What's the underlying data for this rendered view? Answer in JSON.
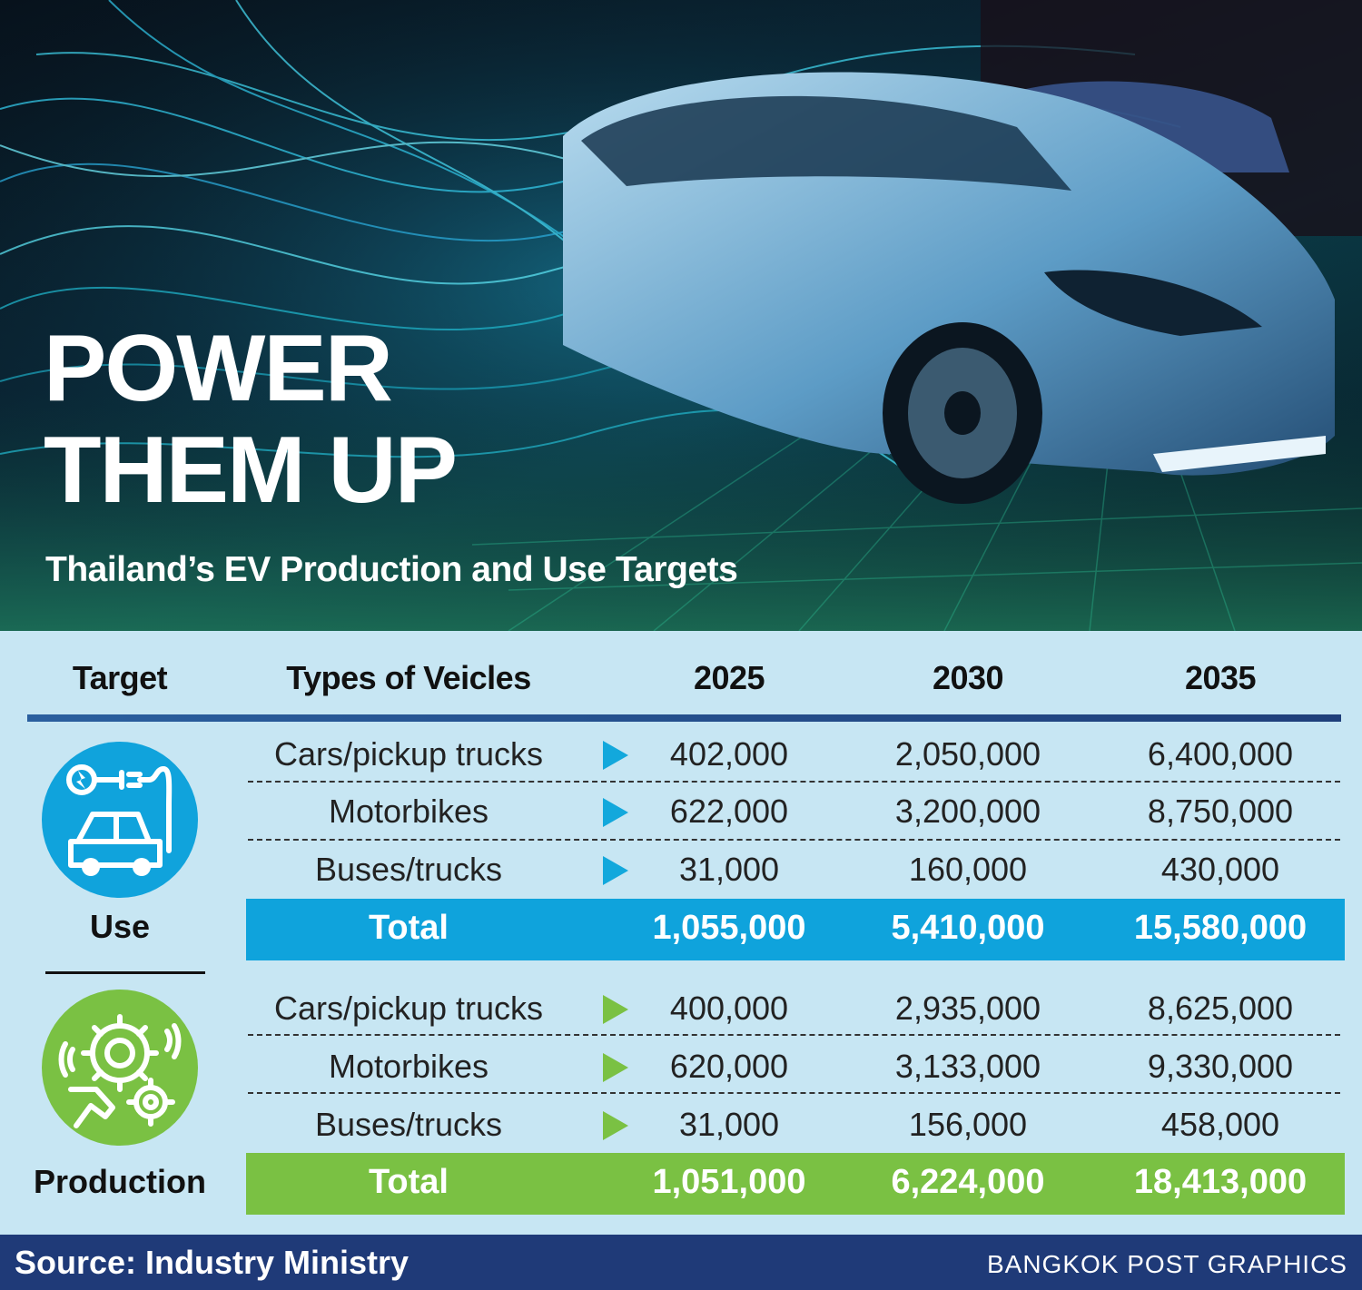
{
  "title_line1": "POWER",
  "title_line2": "THEM UP",
  "subtitle": "Thailand’s EV Production and Use Targets",
  "headers": {
    "target": "Target",
    "types": "Types of Veicles"
  },
  "footer": {
    "source": "Source: Industry Ministry",
    "credit": "BANGKOK POST GRAPHICS"
  },
  "colors": {
    "use": "#0fa3dc",
    "production": "#7ac143",
    "header_rule": "#2a5f9e",
    "footer": "#1f3a78"
  },
  "icons": {
    "use": "ev-charging-car-icon",
    "production": "gears-hand-icon"
  },
  "chart_data": {
    "type": "table",
    "columns": [
      "2025",
      "2030",
      "2035"
    ],
    "groups": [
      {
        "label": "Use",
        "rows": [
          {
            "type": "Cars/pickup trucks",
            "values": [
              "402,000",
              "2,050,000",
              "6,400,000"
            ]
          },
          {
            "type": "Motorbikes",
            "values": [
              "622,000",
              "3,200,000",
              "8,750,000"
            ]
          },
          {
            "type": "Buses/trucks",
            "values": [
              "31,000",
              "160,000",
              "430,000"
            ]
          }
        ],
        "total_label": "Total",
        "totals": [
          "1,055,000",
          "5,410,000",
          "15,580,000"
        ]
      },
      {
        "label": "Production",
        "rows": [
          {
            "type": "Cars/pickup trucks",
            "values": [
              "400,000",
              "2,935,000",
              "8,625,000"
            ]
          },
          {
            "type": "Motorbikes",
            "values": [
              "620,000",
              "3,133,000",
              "9,330,000"
            ]
          },
          {
            "type": "Buses/trucks",
            "values": [
              "31,000",
              "156,000",
              "458,000"
            ]
          }
        ],
        "total_label": "Total",
        "totals": [
          "1,051,000",
          "6,224,000",
          "18,413,000"
        ]
      }
    ]
  }
}
